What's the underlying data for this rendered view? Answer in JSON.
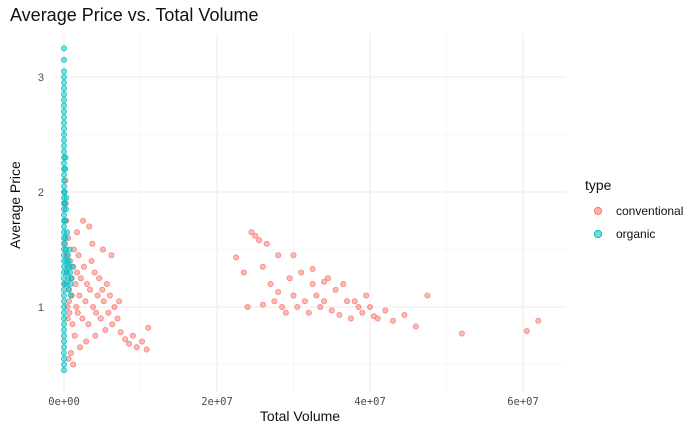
{
  "chart_data": {
    "type": "scatter",
    "title": "Average Price vs. Total Volume",
    "xlabel": "Total Volume",
    "ylabel": "Average Price",
    "xlim": [
      -500000,
      65000000
    ],
    "ylim": [
      0.4,
      3.3
    ],
    "x_ticks": [
      {
        "value": 0,
        "label": "0e+00"
      },
      {
        "value": 20000000,
        "label": "2e+07"
      },
      {
        "value": 40000000,
        "label": "4e+07"
      },
      {
        "value": 60000000,
        "label": "6e+07"
      }
    ],
    "y_ticks": [
      {
        "value": 1,
        "label": "1"
      },
      {
        "value": 2,
        "label": "2"
      },
      {
        "value": 3,
        "label": "3"
      }
    ],
    "grid": true,
    "legend": {
      "title": "type",
      "placement": "right",
      "entries": [
        "conventional",
        "organic"
      ]
    },
    "colors": {
      "conventional": "#F8766D",
      "organic": "#00BFC4"
    },
    "series": [
      {
        "name": "conventional",
        "points": [
          [
            100000,
            1.2
          ],
          [
            150000,
            1.55
          ],
          [
            200000,
            2.1
          ],
          [
            250000,
            1.9
          ],
          [
            300000,
            1.75
          ],
          [
            350000,
            1.45
          ],
          [
            400000,
            1.3
          ],
          [
            450000,
            1.0
          ],
          [
            500000,
            0.9
          ],
          [
            550000,
            1.6
          ],
          [
            600000,
            1.15
          ],
          [
            650000,
            1.05
          ],
          [
            700000,
            0.95
          ],
          [
            800000,
            1.4
          ],
          [
            900000,
            1.25
          ],
          [
            1000000,
            1.1
          ],
          [
            1100000,
            0.85
          ],
          [
            1200000,
            1.35
          ],
          [
            1300000,
            1.5
          ],
          [
            1400000,
            0.75
          ],
          [
            1500000,
            1.2
          ],
          [
            1600000,
            1.0
          ],
          [
            1700000,
            1.3
          ],
          [
            1800000,
            0.95
          ],
          [
            1900000,
            1.45
          ],
          [
            2000000,
            1.1
          ],
          [
            2200000,
            1.25
          ],
          [
            2400000,
            0.9
          ],
          [
            2600000,
            1.35
          ],
          [
            2800000,
            1.05
          ],
          [
            3000000,
            1.2
          ],
          [
            3200000,
            0.85
          ],
          [
            3400000,
            1.15
          ],
          [
            3600000,
            1.4
          ],
          [
            3800000,
            1.0
          ],
          [
            4000000,
            1.3
          ],
          [
            4200000,
            0.95
          ],
          [
            4400000,
            1.1
          ],
          [
            4600000,
            1.25
          ],
          [
            4800000,
            0.9
          ],
          [
            5000000,
            1.15
          ],
          [
            5200000,
            1.05
          ],
          [
            5400000,
            0.8
          ],
          [
            5600000,
            1.2
          ],
          [
            5800000,
            0.95
          ],
          [
            6000000,
            1.1
          ],
          [
            6300000,
            0.85
          ],
          [
            6600000,
            1.0
          ],
          [
            7000000,
            0.9
          ],
          [
            7400000,
            0.78
          ],
          [
            8000000,
            0.72
          ],
          [
            8500000,
            0.68
          ],
          [
            9000000,
            0.75
          ],
          [
            9500000,
            0.65
          ],
          [
            10200000,
            0.7
          ],
          [
            10800000,
            0.63
          ],
          [
            11000000,
            0.82
          ],
          [
            2500000,
            1.75
          ],
          [
            3300000,
            1.7
          ],
          [
            1700000,
            1.65
          ],
          [
            2100000,
            0.65
          ],
          [
            2900000,
            0.7
          ],
          [
            4100000,
            0.75
          ],
          [
            600000,
            0.55
          ],
          [
            900000,
            0.6
          ],
          [
            1200000,
            0.5
          ],
          [
            3700000,
            1.55
          ],
          [
            5100000,
            1.5
          ],
          [
            6200000,
            1.45
          ],
          [
            7200000,
            1.05
          ],
          [
            22500000,
            1.43
          ],
          [
            23500000,
            1.3
          ],
          [
            24000000,
            1.0
          ],
          [
            24500000,
            1.65
          ],
          [
            25000000,
            1.62
          ],
          [
            25500000,
            1.58
          ],
          [
            26000000,
            1.35
          ],
          [
            26500000,
            1.55
          ],
          [
            27000000,
            1.2
          ],
          [
            27500000,
            1.05
          ],
          [
            28000000,
            1.45
          ],
          [
            28500000,
            1.0
          ],
          [
            29000000,
            0.95
          ],
          [
            29500000,
            1.25
          ],
          [
            30000000,
            1.1
          ],
          [
            30500000,
            1.0
          ],
          [
            31000000,
            1.3
          ],
          [
            31500000,
            1.05
          ],
          [
            32000000,
            0.95
          ],
          [
            32500000,
            1.2
          ],
          [
            33000000,
            1.1
          ],
          [
            33500000,
            1.0
          ],
          [
            34000000,
            1.05
          ],
          [
            34500000,
            1.25
          ],
          [
            35000000,
            0.97
          ],
          [
            35500000,
            1.15
          ],
          [
            36000000,
            0.93
          ],
          [
            36500000,
            1.2
          ],
          [
            37000000,
            1.05
          ],
          [
            37500000,
            0.9
          ],
          [
            38000000,
            1.05
          ],
          [
            38500000,
            1.0
          ],
          [
            39000000,
            0.95
          ],
          [
            39500000,
            1.1
          ],
          [
            40000000,
            1.0
          ],
          [
            40500000,
            0.92
          ],
          [
            41000000,
            0.9
          ],
          [
            42000000,
            0.97
          ],
          [
            43000000,
            0.88
          ],
          [
            44500000,
            0.93
          ],
          [
            46000000,
            0.83
          ],
          [
            47500000,
            1.1
          ],
          [
            52000000,
            0.77
          ],
          [
            60500000,
            0.79
          ],
          [
            62000000,
            0.88
          ],
          [
            30000000,
            1.45
          ],
          [
            32500000,
            1.33
          ],
          [
            34000000,
            1.22
          ],
          [
            28000000,
            1.13
          ],
          [
            26000000,
            1.02
          ]
        ]
      },
      {
        "name": "organic",
        "points": [
          [
            0,
            3.25
          ],
          [
            0,
            3.15
          ],
          [
            0,
            3.05
          ],
          [
            0,
            3.0
          ],
          [
            0,
            2.95
          ],
          [
            0,
            2.9
          ],
          [
            0,
            2.85
          ],
          [
            0,
            2.8
          ],
          [
            0,
            2.75
          ],
          [
            0,
            2.7
          ],
          [
            0,
            2.65
          ],
          [
            0,
            2.6
          ],
          [
            0,
            2.55
          ],
          [
            0,
            2.5
          ],
          [
            0,
            2.45
          ],
          [
            0,
            2.4
          ],
          [
            0,
            2.35
          ],
          [
            0,
            2.3
          ],
          [
            0,
            2.25
          ],
          [
            0,
            2.2
          ],
          [
            0,
            2.15
          ],
          [
            0,
            2.1
          ],
          [
            0,
            2.05
          ],
          [
            0,
            2.0
          ],
          [
            0,
            1.95
          ],
          [
            0,
            1.9
          ],
          [
            0,
            1.85
          ],
          [
            0,
            1.8
          ],
          [
            0,
            1.75
          ],
          [
            0,
            1.7
          ],
          [
            0,
            1.65
          ],
          [
            0,
            1.6
          ],
          [
            0,
            1.55
          ],
          [
            0,
            1.5
          ],
          [
            0,
            1.45
          ],
          [
            0,
            1.4
          ],
          [
            0,
            1.35
          ],
          [
            0,
            1.3
          ],
          [
            0,
            1.25
          ],
          [
            0,
            1.2
          ],
          [
            0,
            1.15
          ],
          [
            0,
            1.1
          ],
          [
            0,
            1.05
          ],
          [
            0,
            1.0
          ],
          [
            0,
            0.95
          ],
          [
            0,
            0.9
          ],
          [
            0,
            0.85
          ],
          [
            0,
            0.8
          ],
          [
            0,
            0.75
          ],
          [
            0,
            0.7
          ],
          [
            0,
            0.65
          ],
          [
            0,
            0.6
          ],
          [
            0,
            0.55
          ],
          [
            0,
            0.5
          ],
          [
            0,
            0.45
          ],
          [
            100000,
            2.0
          ],
          [
            100000,
            1.9
          ],
          [
            150000,
            1.75
          ],
          [
            200000,
            1.6
          ],
          [
            250000,
            1.5
          ],
          [
            300000,
            1.4
          ],
          [
            350000,
            1.3
          ],
          [
            400000,
            1.2
          ],
          [
            450000,
            1.35
          ],
          [
            500000,
            1.45
          ],
          [
            550000,
            1.25
          ],
          [
            600000,
            1.4
          ],
          [
            650000,
            1.15
          ],
          [
            700000,
            1.35
          ],
          [
            750000,
            1.5
          ],
          [
            800000,
            1.3
          ],
          [
            850000,
            1.2
          ],
          [
            900000,
            1.1
          ],
          [
            1000000,
            1.25
          ],
          [
            1100000,
            1.35
          ],
          [
            150000,
            2.2
          ],
          [
            200000,
            2.3
          ],
          [
            250000,
            1.85
          ],
          [
            300000,
            1.95
          ],
          [
            400000,
            1.65
          ]
        ]
      }
    ]
  }
}
